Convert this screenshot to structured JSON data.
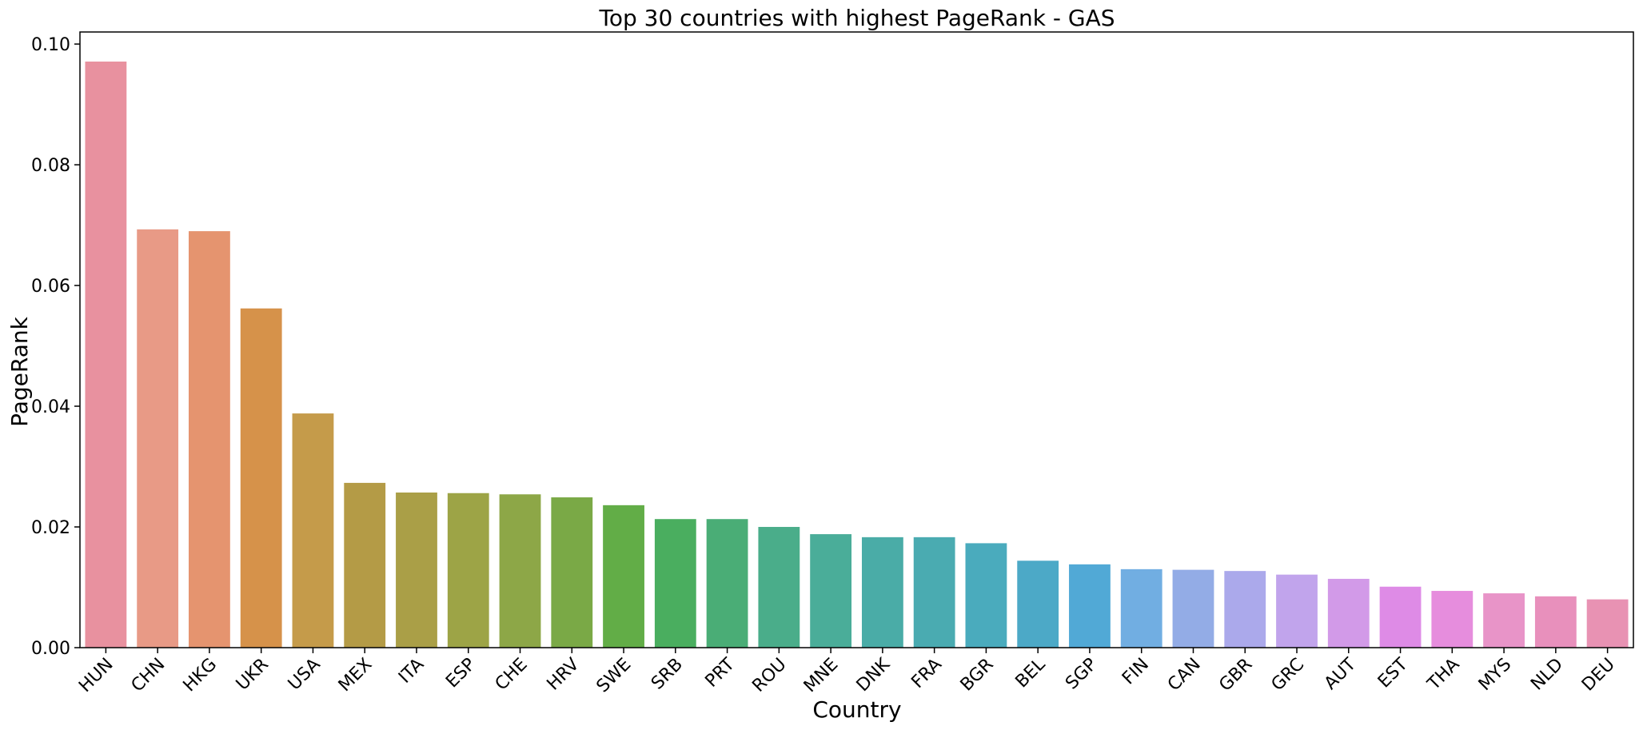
{
  "chart_data": {
    "type": "bar",
    "title": "Top 30 countries with highest PageRank - GAS",
    "xlabel": "Country",
    "ylabel": "PageRank",
    "ylim": [
      0,
      0.102
    ],
    "yticks": [
      "0.00",
      "0.02",
      "0.04",
      "0.06",
      "0.08",
      "0.10"
    ],
    "grid": false,
    "categories": [
      "HUN",
      "CHN",
      "HKG",
      "UKR",
      "USA",
      "MEX",
      "ITA",
      "ESP",
      "CHE",
      "HRV",
      "SWE",
      "SRB",
      "PRT",
      "ROU",
      "MNE",
      "DNK",
      "FRA",
      "BGR",
      "BEL",
      "SGP",
      "FIN",
      "CAN",
      "GBR",
      "GRC",
      "AUT",
      "EST",
      "THA",
      "MYS",
      "NLD",
      "DEU"
    ],
    "values": [
      0.0971,
      0.0693,
      0.069,
      0.0562,
      0.0388,
      0.0273,
      0.0257,
      0.0256,
      0.0254,
      0.0249,
      0.0236,
      0.0213,
      0.0213,
      0.02,
      0.0188,
      0.0183,
      0.0183,
      0.0173,
      0.0144,
      0.0138,
      0.013,
      0.0129,
      0.0127,
      0.0121,
      0.0114,
      0.0101,
      0.0094,
      0.009,
      0.0085,
      0.008
    ],
    "colors": [
      "#e8919f",
      "#e89a86",
      "#e5946f",
      "#d6924a",
      "#c59b4a",
      "#b49b46",
      "#aa9f47",
      "#9da446",
      "#8da747",
      "#7aa946",
      "#62ad47",
      "#4aae5f",
      "#4aad76",
      "#4aad8a",
      "#4aad99",
      "#4aaca7",
      "#4aabb1",
      "#4aabbd",
      "#4ca9c7",
      "#51a9d6",
      "#71aee2",
      "#93ace6",
      "#aba9eb",
      "#c1a4ec",
      "#d29ae8",
      "#de8be6",
      "#e68ddd",
      "#e894c8",
      "#e890bc",
      "#e892b3"
    ]
  }
}
